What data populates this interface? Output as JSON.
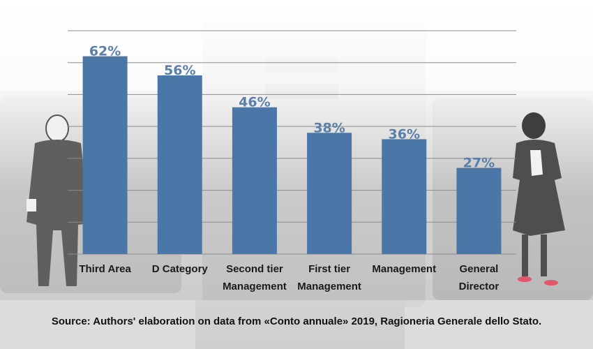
{
  "chart_data": {
    "type": "bar",
    "title": "",
    "xlabel": "",
    "ylabel": "",
    "categories": [
      [
        "Third Area"
      ],
      [
        "D Category"
      ],
      [
        "Second tier",
        "Management"
      ],
      [
        "First tier",
        "Management"
      ],
      [
        "Management"
      ],
      [
        "General",
        "Director"
      ]
    ],
    "values": [
      62,
      56,
      46,
      38,
      36,
      27
    ],
    "value_labels": [
      "62%",
      "56%",
      "46%",
      "38%",
      "36%",
      "27%"
    ],
    "ylim": [
      0,
      70
    ],
    "grid": true,
    "bar_color": "#4a77a8",
    "label_color": "#5a7fa8"
  },
  "source": "Source: Authors' elaboration on data from «Conto annuale» 2019, Ragioneria Generale dello Stato."
}
